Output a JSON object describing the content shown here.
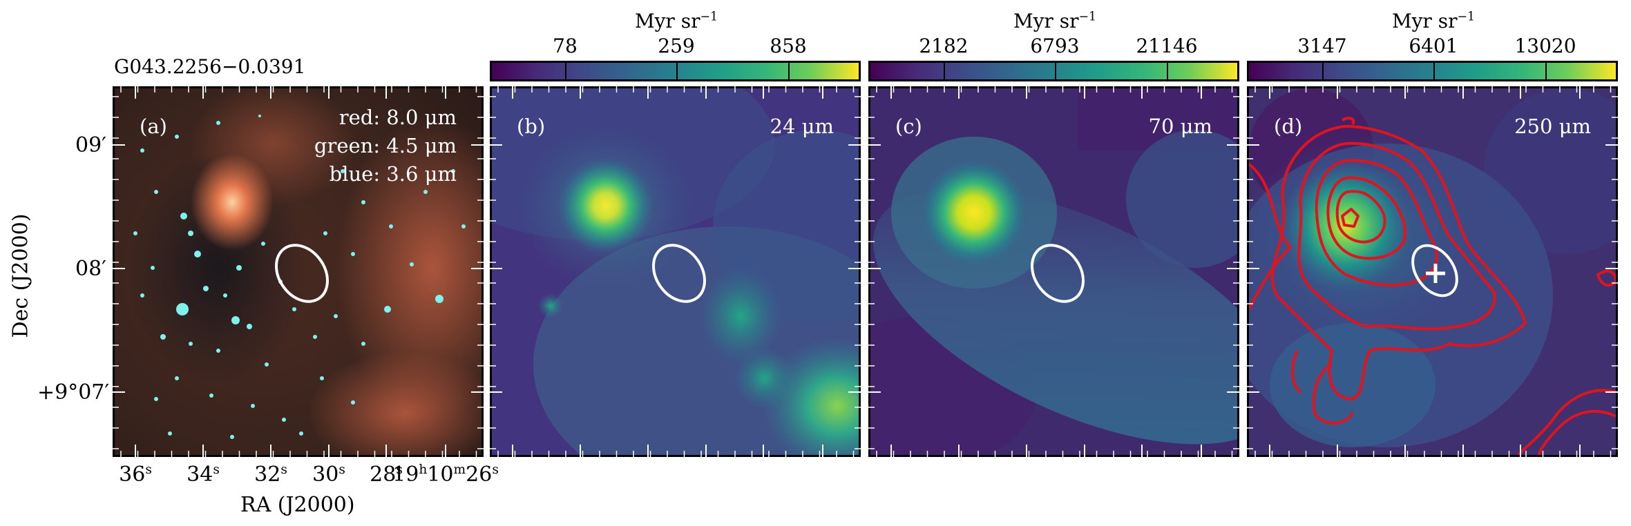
{
  "figure": {
    "source_name": "G043.2256−0.0391",
    "ylabel": "Dec (J2000)",
    "xlabel": "RA (J2000)",
    "yticks": [
      "09′",
      "08′",
      "+9°07′"
    ],
    "xticks": [
      {
        "main": "36",
        "sup": "s"
      },
      {
        "main": "34",
        "sup": "s"
      },
      {
        "main": "32",
        "sup": "s"
      },
      {
        "main": "30",
        "sup": "s"
      },
      {
        "main": "28",
        "sup": "s"
      },
      {
        "main": "19",
        "sup": "h",
        "main2": "10",
        "sup2": "m",
        "main3": "26",
        "sup3": "s"
      }
    ]
  },
  "panels": [
    {
      "id": "a",
      "label": "(a)",
      "rgb": [
        "red: 8.0 μm",
        "green: 4.5 μm",
        "blue: 3.6 μm"
      ]
    },
    {
      "id": "b",
      "label": "(b)",
      "wavelength": "24 μm",
      "colorbar": {
        "unit": "Myr sr",
        "unit_exp": "−1",
        "ticks": [
          "78",
          "259",
          "858"
        ]
      }
    },
    {
      "id": "c",
      "label": "(c)",
      "wavelength": "70 μm",
      "colorbar": {
        "unit": "Myr sr",
        "unit_exp": "−1",
        "ticks": [
          "2182",
          "6793",
          "21146"
        ]
      }
    },
    {
      "id": "d",
      "label": "(d)",
      "wavelength": "250 μm",
      "colorbar": {
        "unit": "Myr sr",
        "unit_exp": "−1",
        "ticks": [
          "3147",
          "6401",
          "13020"
        ]
      }
    }
  ],
  "colors": {
    "colormap": "viridis",
    "contour": "#e0141e",
    "ellipse": "#ffffff",
    "marker": "#ffffff"
  }
}
